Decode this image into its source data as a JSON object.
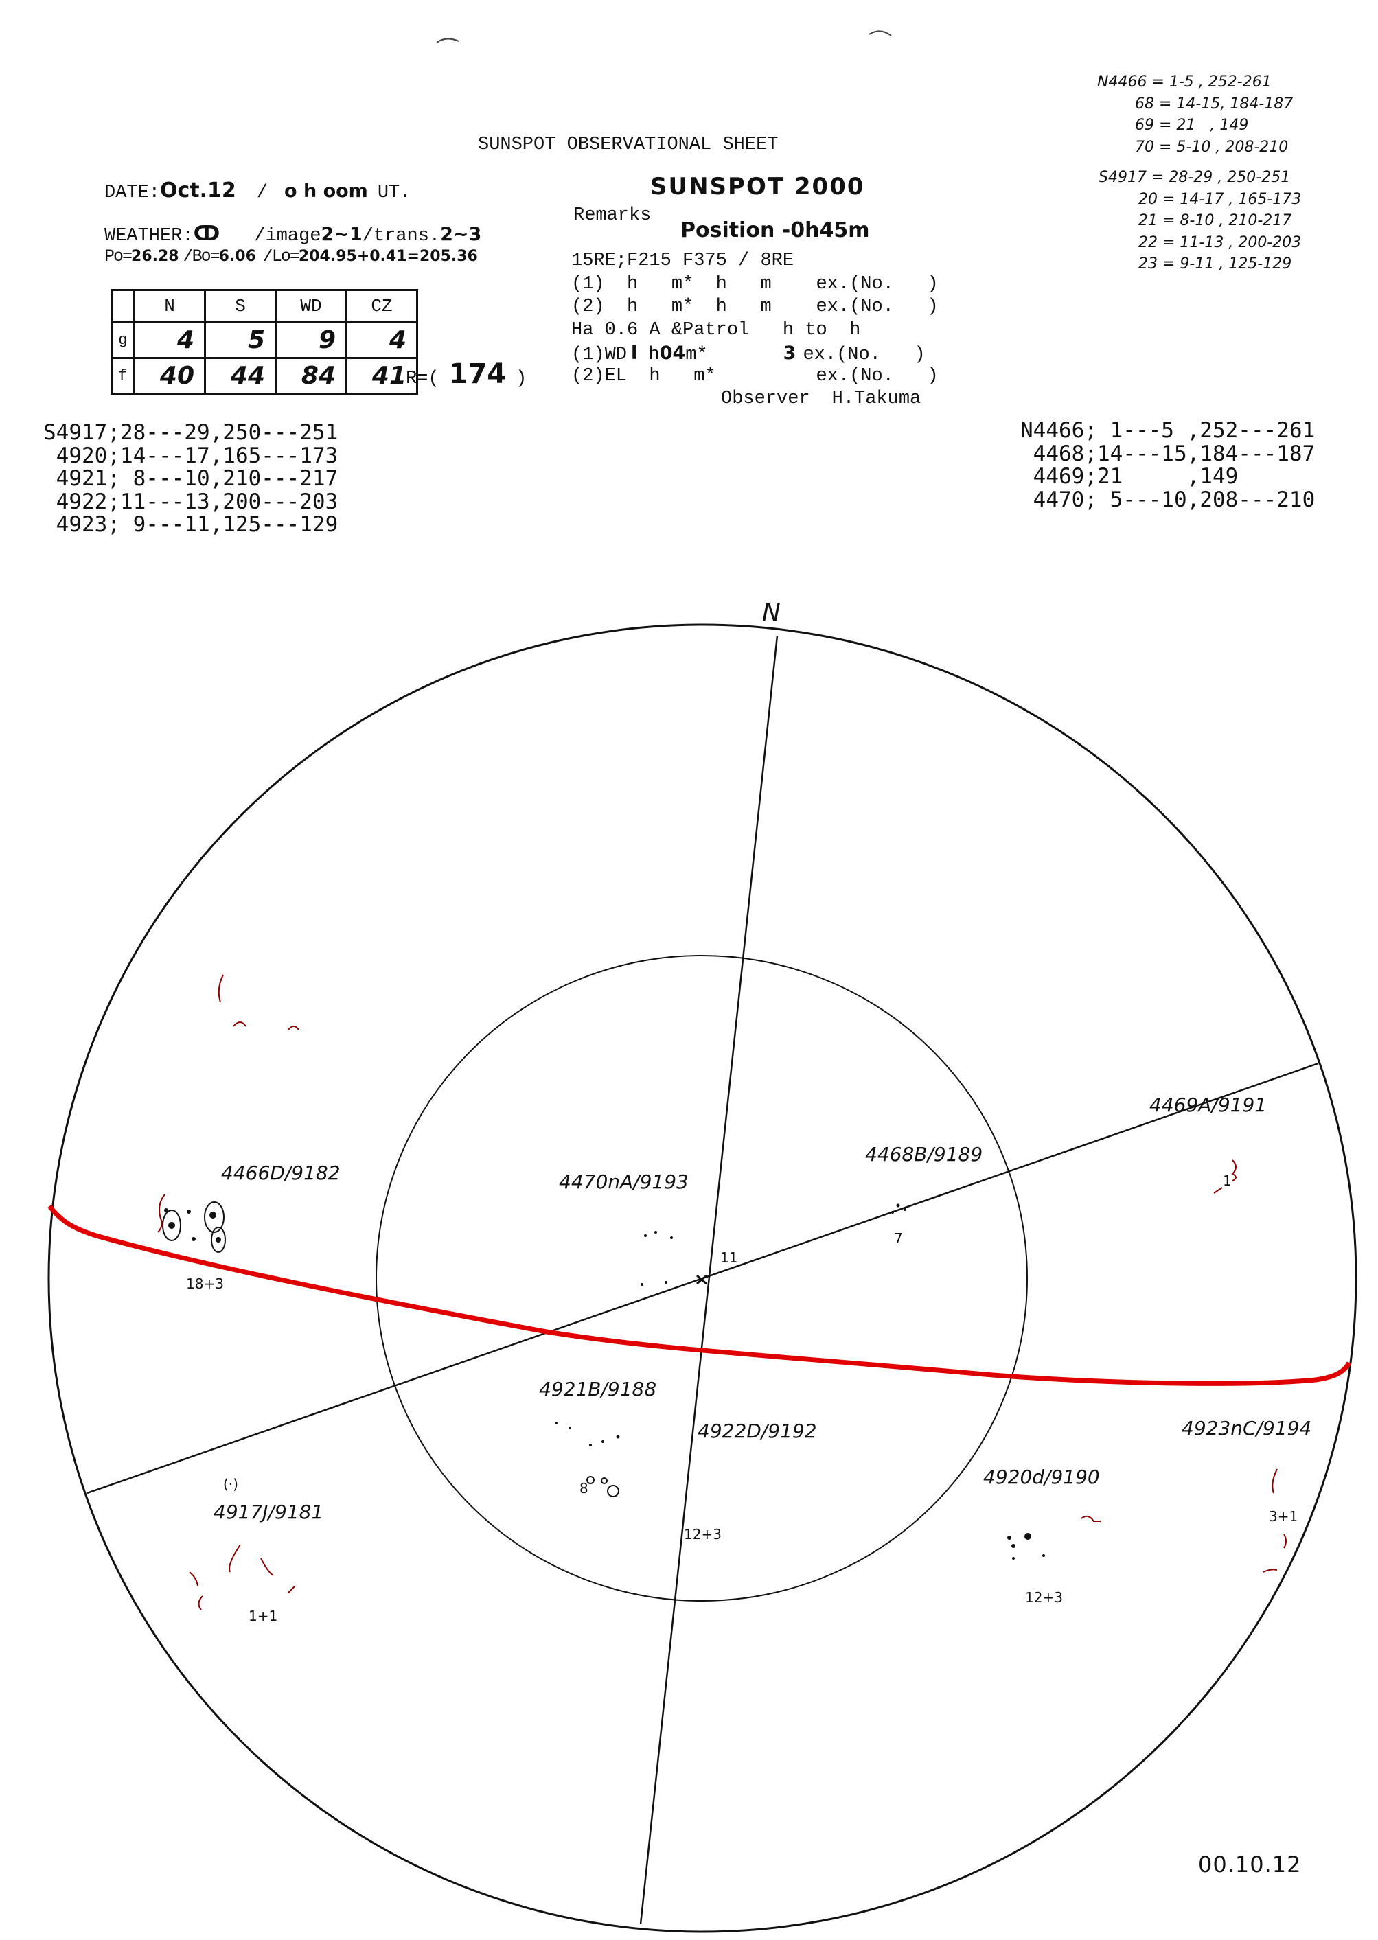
{
  "sheet": {
    "title": "SUNSPOT OBSERVATIONAL SHEET",
    "subtitle": "SUNSPOT 2000",
    "date_label": "DATE:",
    "date_value": "Oct.12",
    "time_sep": "/",
    "time_value": "o h oom",
    "time_unit": "UT.",
    "weather_label": "WEATHER:",
    "weather_value": "ↀ",
    "image_label": "/image",
    "image_value": "2~1",
    "trans_label": "/trans.",
    "trans_value": "2~3",
    "po_label": "Po=",
    "po_value": "26.28",
    "bo_label": "/Bo=",
    "bo_value": "6.06",
    "lo_label": "/Lo=",
    "lo_value": "204.95+0.41=205.36",
    "r_label": "R=(",
    "r_value": "174",
    "r_close": ")"
  },
  "counts_table": {
    "columns": [
      "",
      "N",
      "S",
      "WD",
      "CZ"
    ],
    "rows": [
      {
        "label": "g",
        "values": [
          "4",
          "5",
          "9",
          "4"
        ]
      },
      {
        "label": "f",
        "values": [
          "40",
          "44",
          "84",
          "41"
        ]
      }
    ]
  },
  "remarks": {
    "label": "Remarks",
    "handwritten": "Position -0h45m",
    "lines": [
      "15RE;F215 F375 / 8RE",
      "(1)  h   m*  h   m    ex.(No.   )",
      "(2)  h   m*  h   m    ex.(No.   )",
      "Ha 0.6 A &Patrol   h to  h",
      "(1)WD",
      "(2)EL  h   m*         ex.(No.   )"
    ],
    "wd_line": {
      "a": "(1)WD",
      "hand1": "l",
      "b": " h",
      "hand2": "04",
      "c": "m*",
      "hand3": "3",
      "d": "ex.(No.   )"
    },
    "observer_label": "Observer",
    "observer_name": "H.Takuma"
  },
  "handwritten_notes": {
    "north": [
      "N4466 = 1-5 , 252-261",
      "68 = 14-15, 184-187",
      "69 = 21   , 149",
      "70 = 5-10 , 208-210"
    ],
    "south": [
      "S4917 = 28-29 , 250-251",
      "20 = 14-17 , 165-173",
      "21 = 8-10 , 210-217",
      "22 = 11-13 , 200-203",
      "23 = 9-11 , 125-129"
    ]
  },
  "south_list": [
    "S4917;28---29,250---251",
    " 4920;14---17,165---173",
    " 4921; 8---10,210---217",
    " 4922;11---13,200---203",
    " 4923; 9---11,125---129"
  ],
  "north_list": [
    "N4466; 1---5 ,252---261",
    " 4468;14---15,184---187",
    " 4469;21     ,149",
    " 4470; 5---10,208---210"
  ],
  "disk": {
    "north_mark": "N",
    "line_color": "#111111",
    "equator_color": "#e00000",
    "faculae_color": "#8b0000",
    "groups": [
      {
        "label": "4466D/9182",
        "count": "18+3"
      },
      {
        "label": "4470nA/9193",
        "count": "11"
      },
      {
        "label": "4468B/9189",
        "count": "7"
      },
      {
        "label": "4469A/9191",
        "count": "1"
      },
      {
        "label": "4921B/9188",
        "count": "8"
      },
      {
        "label": "4922D/9192",
        "count": "12+3"
      },
      {
        "label": "4923nC/9194",
        "count": "3+1"
      },
      {
        "label": "4920d/9190",
        "count": "12+3"
      },
      {
        "label": "4917J/9181",
        "count": "1+1",
        "note": "(·)"
      }
    ]
  },
  "footer": {
    "stamp": "00.10.12"
  }
}
